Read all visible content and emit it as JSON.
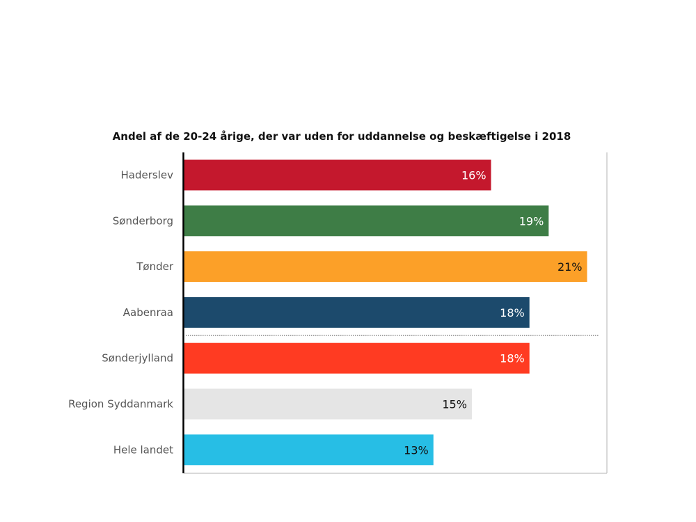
{
  "chart_data": {
    "type": "bar",
    "orientation": "horizontal",
    "title": "Andel af de 20-24 årige, der var uden for uddannelse og beskæftigelse i 2018",
    "xlabel": "",
    "ylabel": "",
    "xlim": [
      0,
      22.2
    ],
    "grid": false,
    "legend": "none",
    "categories": [
      "Haderslev",
      "Sønderborg",
      "Tønder",
      "Aabenraa",
      "Sønderjylland",
      "Region Syddanmark",
      "Hele landet"
    ],
    "values": [
      16,
      19,
      21,
      18,
      18,
      15,
      13
    ],
    "value_labels": [
      "16%",
      "19%",
      "21%",
      "18%",
      "18%",
      "15%",
      "13%"
    ],
    "colors": [
      "#c4182d",
      "#3e7d46",
      "#fca028",
      "#1c4a6c",
      "#ff3b22",
      "#e5e5e5",
      "#27bee5"
    ],
    "label_colors": [
      "#ffffff",
      "#ffffff",
      "#111111",
      "#ffffff",
      "#ffffff",
      "#111111",
      "#111111"
    ],
    "separator_after_index": 3
  }
}
